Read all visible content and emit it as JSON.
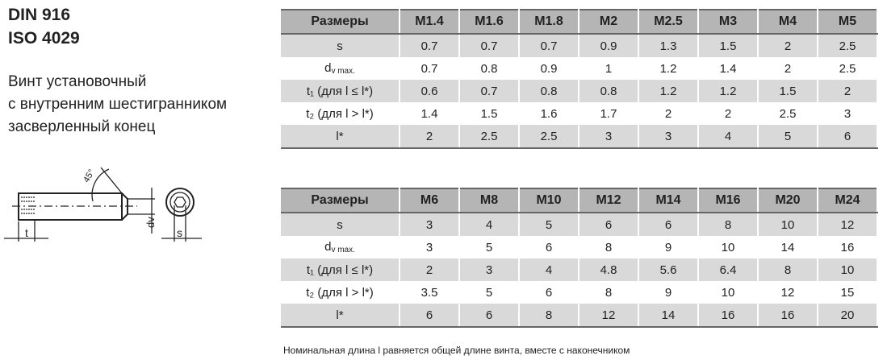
{
  "title": [
    "DIN 916",
    "ISO 4029"
  ],
  "description": [
    "Винт установочный",
    "с внутренним шестигранником",
    "засверленный конец"
  ],
  "drawing": {
    "angle_label": "45°",
    "t_label": "t",
    "dv_label": "dv",
    "s_label": "s"
  },
  "tables": [
    {
      "header": [
        "Размеры",
        "M1.4",
        "M1.6",
        "M1.8",
        "M2",
        "M2.5",
        "M3",
        "M4",
        "M5"
      ],
      "rows": [
        {
          "label": "s",
          "values": [
            "0.7",
            "0.7",
            "0.7",
            "0.9",
            "1.3",
            "1.5",
            "2",
            "2.5"
          ]
        },
        {
          "label": "d",
          "sub": "v max.",
          "values": [
            "0.7",
            "0.8",
            "0.9",
            "1",
            "1.2",
            "1.4",
            "2",
            "2.5"
          ]
        },
        {
          "label": "t₁ (для l ≤ l*)",
          "values": [
            "0.6",
            "0.7",
            "0.8",
            "0.8",
            "1.2",
            "1.2",
            "1.5",
            "2"
          ]
        },
        {
          "label": "t₂ (для l > l*)",
          "values": [
            "1.4",
            "1.5",
            "1.6",
            "1.7",
            "2",
            "2",
            "2.5",
            "3"
          ]
        },
        {
          "label": "l*",
          "values": [
            "2",
            "2.5",
            "2.5",
            "3",
            "3",
            "4",
            "5",
            "6"
          ]
        }
      ]
    },
    {
      "header": [
        "Размеры",
        "M6",
        "M8",
        "M10",
        "M12",
        "M14",
        "M16",
        "M20",
        "M24"
      ],
      "rows": [
        {
          "label": "s",
          "values": [
            "3",
            "4",
            "5",
            "6",
            "6",
            "8",
            "10",
            "12"
          ]
        },
        {
          "label": "d",
          "sub": "v max.",
          "values": [
            "3",
            "5",
            "6",
            "8",
            "9",
            "10",
            "14",
            "16"
          ]
        },
        {
          "label": "t₁ (для l ≤ l*)",
          "values": [
            "2",
            "3",
            "4",
            "4.8",
            "5.6",
            "6.4",
            "8",
            "10"
          ]
        },
        {
          "label": "t₂ (для l > l*)",
          "values": [
            "3.5",
            "5",
            "6",
            "8",
            "9",
            "10",
            "12",
            "15"
          ]
        },
        {
          "label": "l*",
          "values": [
            "6",
            "6",
            "8",
            "12",
            "14",
            "16",
            "16",
            "20"
          ]
        }
      ]
    }
  ],
  "note": "Номинальная длина l равняется общей длине винта, вместе с наконечником"
}
